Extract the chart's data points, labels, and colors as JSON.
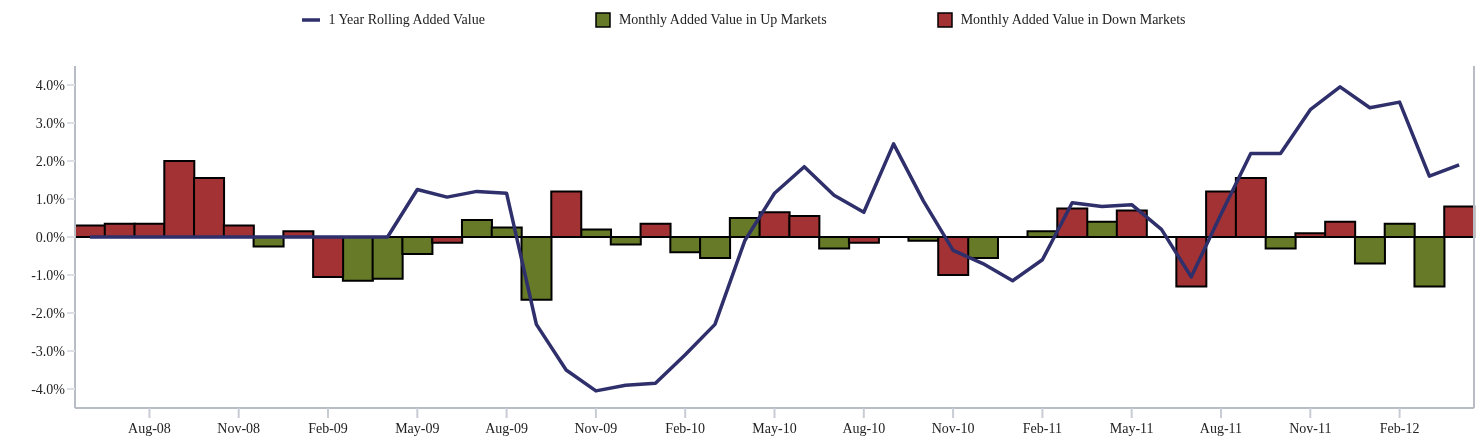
{
  "chart_data": {
    "type": "bar",
    "stacked": true,
    "categories": [
      null,
      null,
      "Aug-08",
      null,
      null,
      "Nov-08",
      null,
      null,
      "Feb-09",
      null,
      null,
      "May-09",
      null,
      null,
      "Aug-09",
      null,
      null,
      "Nov-09",
      null,
      null,
      "Feb-10",
      null,
      null,
      "May-10",
      null,
      null,
      "Aug-10",
      null,
      null,
      "Nov-10",
      null,
      null,
      "Feb-11",
      null,
      null,
      "May-11",
      null,
      null,
      "Aug-11",
      null,
      null,
      "Nov-11",
      null,
      null,
      "Feb-12",
      null,
      null
    ],
    "series": [
      {
        "name": "1 Year Rolling Added Value",
        "type": "line",
        "color": "#2e2f6b",
        "values": [
          0,
          0,
          0,
          0,
          0,
          0,
          0,
          0,
          0,
          0,
          0,
          1.25,
          1.05,
          1.2,
          1.15,
          -2.3,
          -3.5,
          -4.05,
          -3.9,
          -3.85,
          -3.1,
          -2.3,
          -0.1,
          1.15,
          1.85,
          1.1,
          0.65,
          2.45,
          0.95,
          -0.35,
          -0.7,
          -1.15,
          -0.6,
          0.9,
          0.8,
          0.85,
          0.2,
          -1.05,
          0.6,
          2.2,
          2.2,
          3.35,
          3.95,
          3.4,
          3.55,
          1.6,
          1.9
        ]
      },
      {
        "name": "Monthly Added Value in Up Markets",
        "type": "bar",
        "color": "#667a28",
        "values": [
          null,
          null,
          null,
          null,
          null,
          null,
          -0.25,
          null,
          null,
          -1.15,
          -1.1,
          -0.45,
          null,
          0.45,
          0.25,
          -1.65,
          null,
          0.2,
          -0.2,
          null,
          -0.4,
          -0.55,
          0.5,
          null,
          null,
          -0.3,
          null,
          null,
          -0.1,
          null,
          -0.55,
          null,
          0.15,
          null,
          0.4,
          null,
          null,
          null,
          null,
          null,
          -0.3,
          null,
          null,
          -0.7,
          0.35,
          -1.3,
          null
        ]
      },
      {
        "name": "Monthly Added Value in Down Markets",
        "type": "bar",
        "color": "#a23234",
        "values": [
          0.3,
          0.35,
          0.35,
          2.0,
          1.55,
          0.3,
          null,
          0.15,
          -1.05,
          null,
          null,
          null,
          -0.15,
          null,
          null,
          null,
          1.2,
          null,
          null,
          0.35,
          null,
          null,
          null,
          0.65,
          0.55,
          null,
          -0.15,
          null,
          null,
          -1.0,
          null,
          null,
          null,
          0.75,
          null,
          0.7,
          null,
          -1.3,
          1.2,
          1.55,
          null,
          0.1,
          0.4,
          null,
          null,
          null,
          0.8
        ]
      }
    ],
    "ylim": [
      -4.5,
      4.5
    ],
    "yticks": [
      {
        "value": -4,
        "label": "-4.0%"
      },
      {
        "value": -3,
        "label": "-3.0%"
      },
      {
        "value": -2,
        "label": "-2.0%"
      },
      {
        "value": -1,
        "label": "-1.0%"
      },
      {
        "value": 0,
        "label": "0.0%"
      },
      {
        "value": 1,
        "label": "1.0%"
      },
      {
        "value": 2,
        "label": "2.0%"
      },
      {
        "value": 3,
        "label": "3.0%"
      },
      {
        "value": 4,
        "label": "4.0%"
      }
    ],
    "ref_lines": [
      {
        "axis": "y",
        "value": 0,
        "color": "#000000"
      }
    ],
    "legend": "top",
    "marker": "none",
    "line_style": "solid",
    "grid": false
  }
}
